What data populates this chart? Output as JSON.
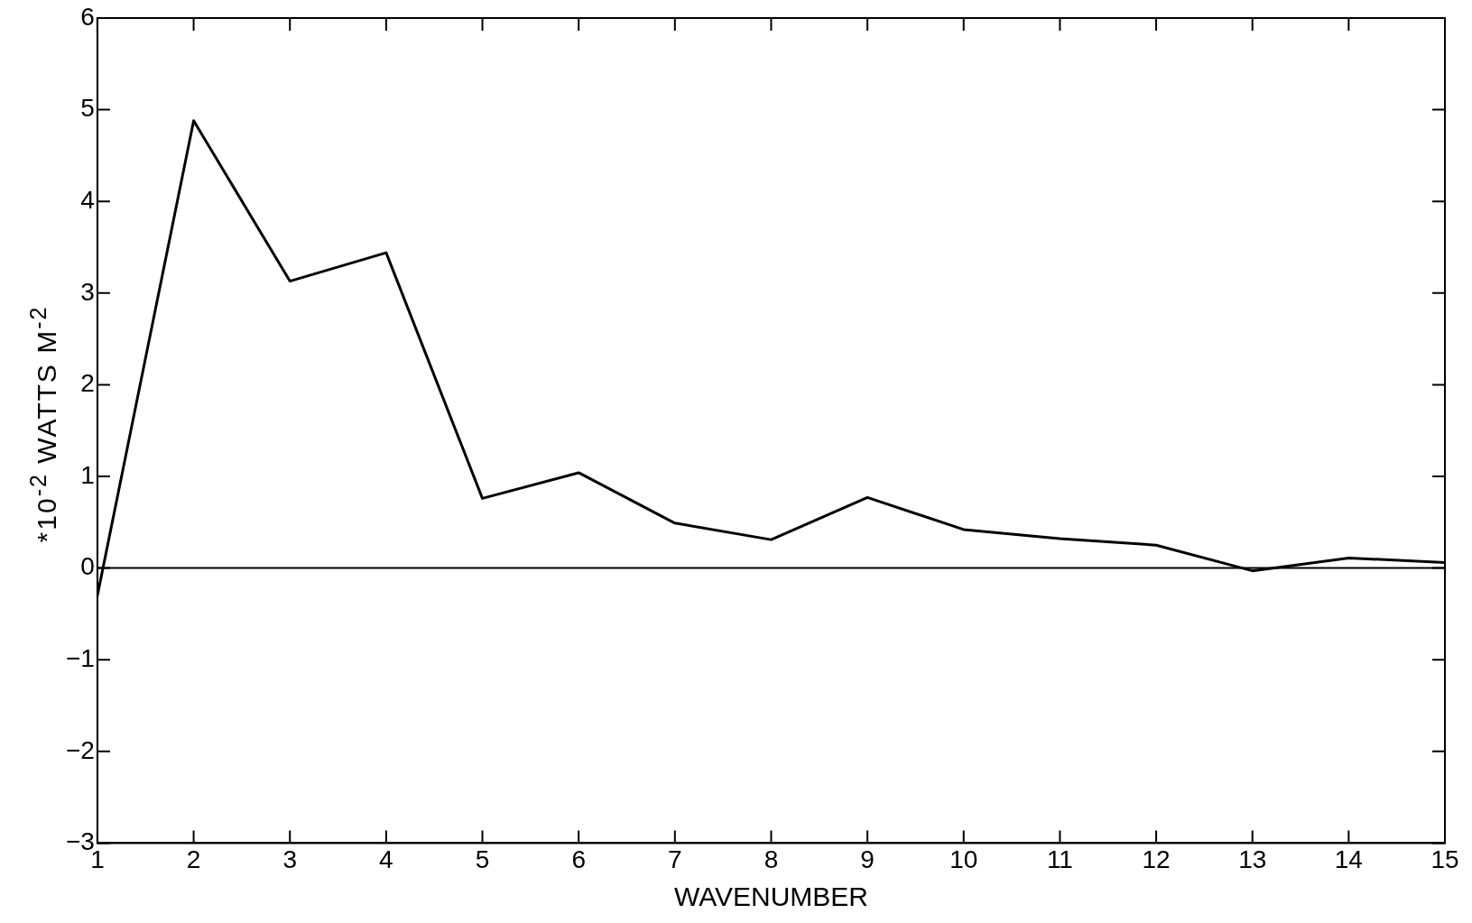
{
  "chart_data": {
    "type": "line",
    "xlabel": "WAVENUMBER",
    "ylabel": "*10$^{-2}$ WATTS M$^{-2}$",
    "x": [
      1,
      2,
      3,
      4,
      5,
      6,
      7,
      8,
      9,
      10,
      11,
      12,
      13,
      14,
      15
    ],
    "series": [
      {
        "color": "#000000",
        "values": [
          -0.3,
          4.88,
          3.13,
          3.44,
          0.76,
          1.04,
          0.49,
          0.31,
          0.77,
          0.42,
          0.32,
          0.25,
          -0.03,
          0.11,
          0.06
        ]
      }
    ],
    "xlim": [
      1,
      15
    ],
    "xticks": [
      1,
      2,
      3,
      4,
      5,
      6,
      7,
      8,
      9,
      10,
      11,
      12,
      13,
      14,
      15
    ],
    "ylim": [
      -3,
      6
    ],
    "yticks": [
      -3,
      -2,
      -1,
      0,
      1,
      2,
      3,
      4,
      5,
      6
    ],
    "ref_lines": [
      {
        "axis": "y",
        "value": 0,
        "color": "#000000"
      }
    ],
    "grid": false,
    "legend": false,
    "marker": "none",
    "line_style": "solid"
  }
}
